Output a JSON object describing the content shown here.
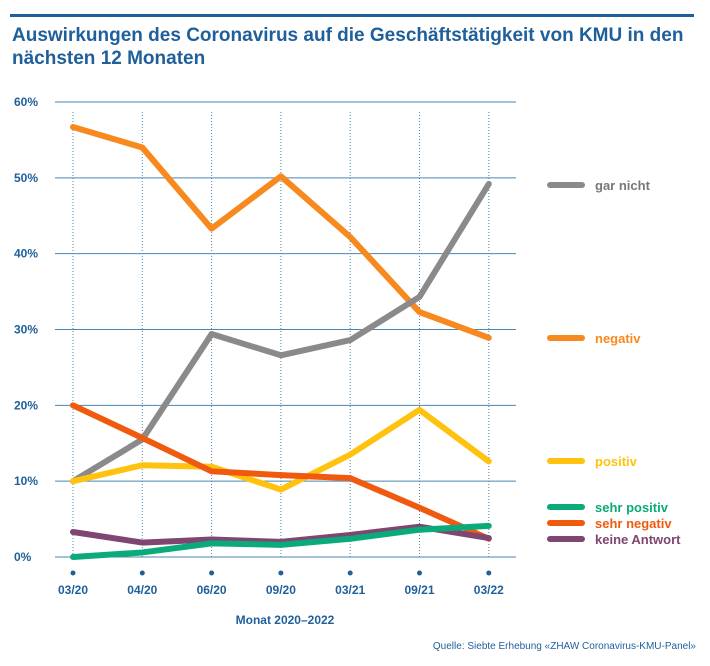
{
  "chart_data": {
    "type": "line",
    "title": "Auswirkungen des Coronavirus auf die Geschäftstätigkeit von KMU in den nächsten 12 Monaten",
    "xlabel": "Monat 2020–2022",
    "ylabel": "",
    "categories": [
      "03/20",
      "04/20",
      "06/20",
      "09/20",
      "03/21",
      "09/21",
      "03/22"
    ],
    "ylim": [
      0,
      60
    ],
    "yticks": [
      0,
      10,
      20,
      30,
      40,
      50,
      60
    ],
    "ytick_labels": [
      "0%",
      "10%",
      "20%",
      "30%",
      "40%",
      "50%",
      "60%"
    ],
    "grid": "horizontal solid, vertical dotted",
    "legend": "right",
    "series": [
      {
        "name": "negativ",
        "color": "#f7891f",
        "values": [
          56.7,
          54.0,
          43.3,
          50.2,
          42.2,
          32.3,
          28.9
        ]
      },
      {
        "name": "gar nicht",
        "color": "#8a8a8a",
        "values": [
          10.0,
          15.5,
          29.4,
          26.6,
          28.6,
          34.3,
          49.2
        ]
      },
      {
        "name": "positiv",
        "color": "#ffc20e",
        "values": [
          10.0,
          12.1,
          11.9,
          8.9,
          13.5,
          19.4,
          12.6
        ]
      },
      {
        "name": "sehr negativ",
        "color": "#f05a0f",
        "values": [
          20.0,
          15.7,
          11.3,
          10.8,
          10.4,
          6.5,
          2.4
        ]
      },
      {
        "name": "keine Antwort",
        "color": "#7e4670",
        "values": [
          3.3,
          1.9,
          2.3,
          2.0,
          2.9,
          4.0,
          2.5
        ]
      },
      {
        "name": "sehr positiv",
        "color": "#0baa7a",
        "values": [
          0.0,
          0.6,
          1.8,
          1.6,
          2.4,
          3.6,
          4.1
        ]
      }
    ],
    "source": "Quelle: Siebte Erhebung «ZHAW Coronavirus-KMU-Panel»"
  },
  "colors": {
    "axis_text": "#1f5f9a",
    "grid": "#4a86b4"
  }
}
